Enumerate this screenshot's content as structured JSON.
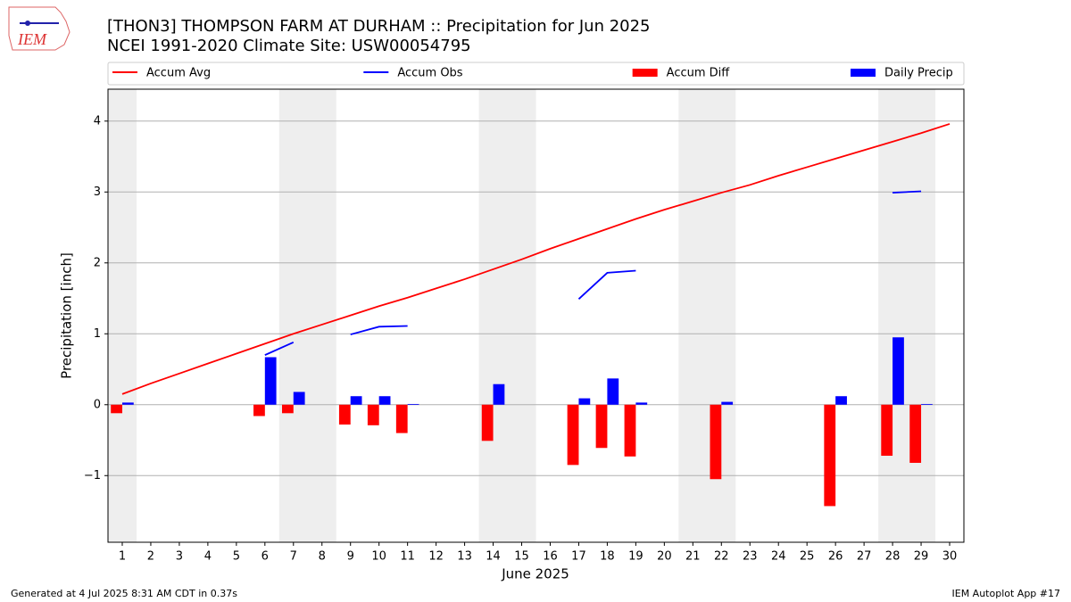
{
  "logo": "IEM",
  "footer_left": "Generated at 4 Jul 2025 8:31 AM CDT in 0.37s",
  "footer_right": "IEM Autoplot App #17",
  "chart_data": {
    "type": "combo",
    "title": "[THON3] THOMPSON FARM AT DURHAM :: Precipitation for Jun 2025",
    "subtitle": "NCEI 1991-2020 Climate Site: USW00054795",
    "x_label": "June 2025",
    "y_label": "Precipitation [inch]",
    "x": [
      1,
      2,
      3,
      4,
      5,
      6,
      7,
      8,
      9,
      10,
      11,
      12,
      13,
      14,
      15,
      16,
      17,
      18,
      19,
      20,
      21,
      22,
      23,
      24,
      25,
      26,
      27,
      28,
      29,
      30
    ],
    "xlim": [
      0.5,
      30.5
    ],
    "xticks": [
      1,
      2,
      3,
      4,
      5,
      6,
      7,
      8,
      9,
      10,
      11,
      12,
      13,
      14,
      15,
      16,
      17,
      18,
      19,
      20,
      21,
      22,
      23,
      24,
      25,
      26,
      27,
      28,
      29,
      30
    ],
    "ylim": [
      -1.94,
      4.45
    ],
    "yticks": [
      {
        "value": -1,
        "label": "−1"
      },
      0,
      1,
      2,
      3,
      4
    ],
    "grid": "y",
    "legend": "top",
    "shade_spans": [
      [
        0.5,
        1.5
      ],
      [
        6.5,
        8.5
      ],
      [
        13.5,
        15.5
      ],
      [
        20.5,
        22.5
      ],
      [
        27.5,
        29.5
      ]
    ],
    "shade_color": "#eeeeee",
    "series": [
      {
        "name": "Accum Avg",
        "type": "line",
        "color": "#ff0000",
        "values": [
          0.15,
          0.3,
          0.44,
          0.58,
          0.72,
          0.86,
          1.0,
          1.13,
          1.26,
          1.39,
          1.51,
          1.64,
          1.77,
          1.91,
          2.05,
          2.2,
          2.34,
          2.48,
          2.62,
          2.75,
          2.87,
          2.99,
          3.1,
          3.23,
          3.35,
          3.47,
          3.59,
          3.71,
          3.83,
          3.96
        ]
      },
      {
        "name": "Accum Obs",
        "type": "line",
        "color": "#0000ff",
        "values": [
          null,
          null,
          null,
          null,
          null,
          0.7,
          0.88,
          null,
          0.99,
          1.1,
          1.11,
          null,
          null,
          null,
          null,
          null,
          1.49,
          1.86,
          1.89,
          null,
          null,
          null,
          null,
          null,
          null,
          null,
          null,
          2.99,
          3.01,
          null
        ]
      },
      {
        "name": "Accum Diff",
        "type": "bar",
        "color": "#ff0000",
        "values": [
          -0.12,
          null,
          null,
          null,
          null,
          -0.16,
          -0.12,
          null,
          -0.28,
          -0.29,
          -0.4,
          null,
          null,
          -0.51,
          null,
          null,
          -0.85,
          -0.61,
          -0.73,
          null,
          null,
          -1.05,
          null,
          null,
          null,
          -1.43,
          null,
          -0.72,
          -0.82,
          null
        ]
      },
      {
        "name": "Daily Precip",
        "type": "bar",
        "color": "#0000ff",
        "values": [
          0.03,
          null,
          null,
          null,
          null,
          0.67,
          0.18,
          null,
          0.12,
          0.12,
          0.01,
          null,
          null,
          0.29,
          null,
          null,
          0.09,
          0.37,
          0.03,
          null,
          null,
          0.04,
          null,
          null,
          null,
          0.12,
          null,
          0.95,
          0.01,
          null
        ]
      }
    ]
  }
}
